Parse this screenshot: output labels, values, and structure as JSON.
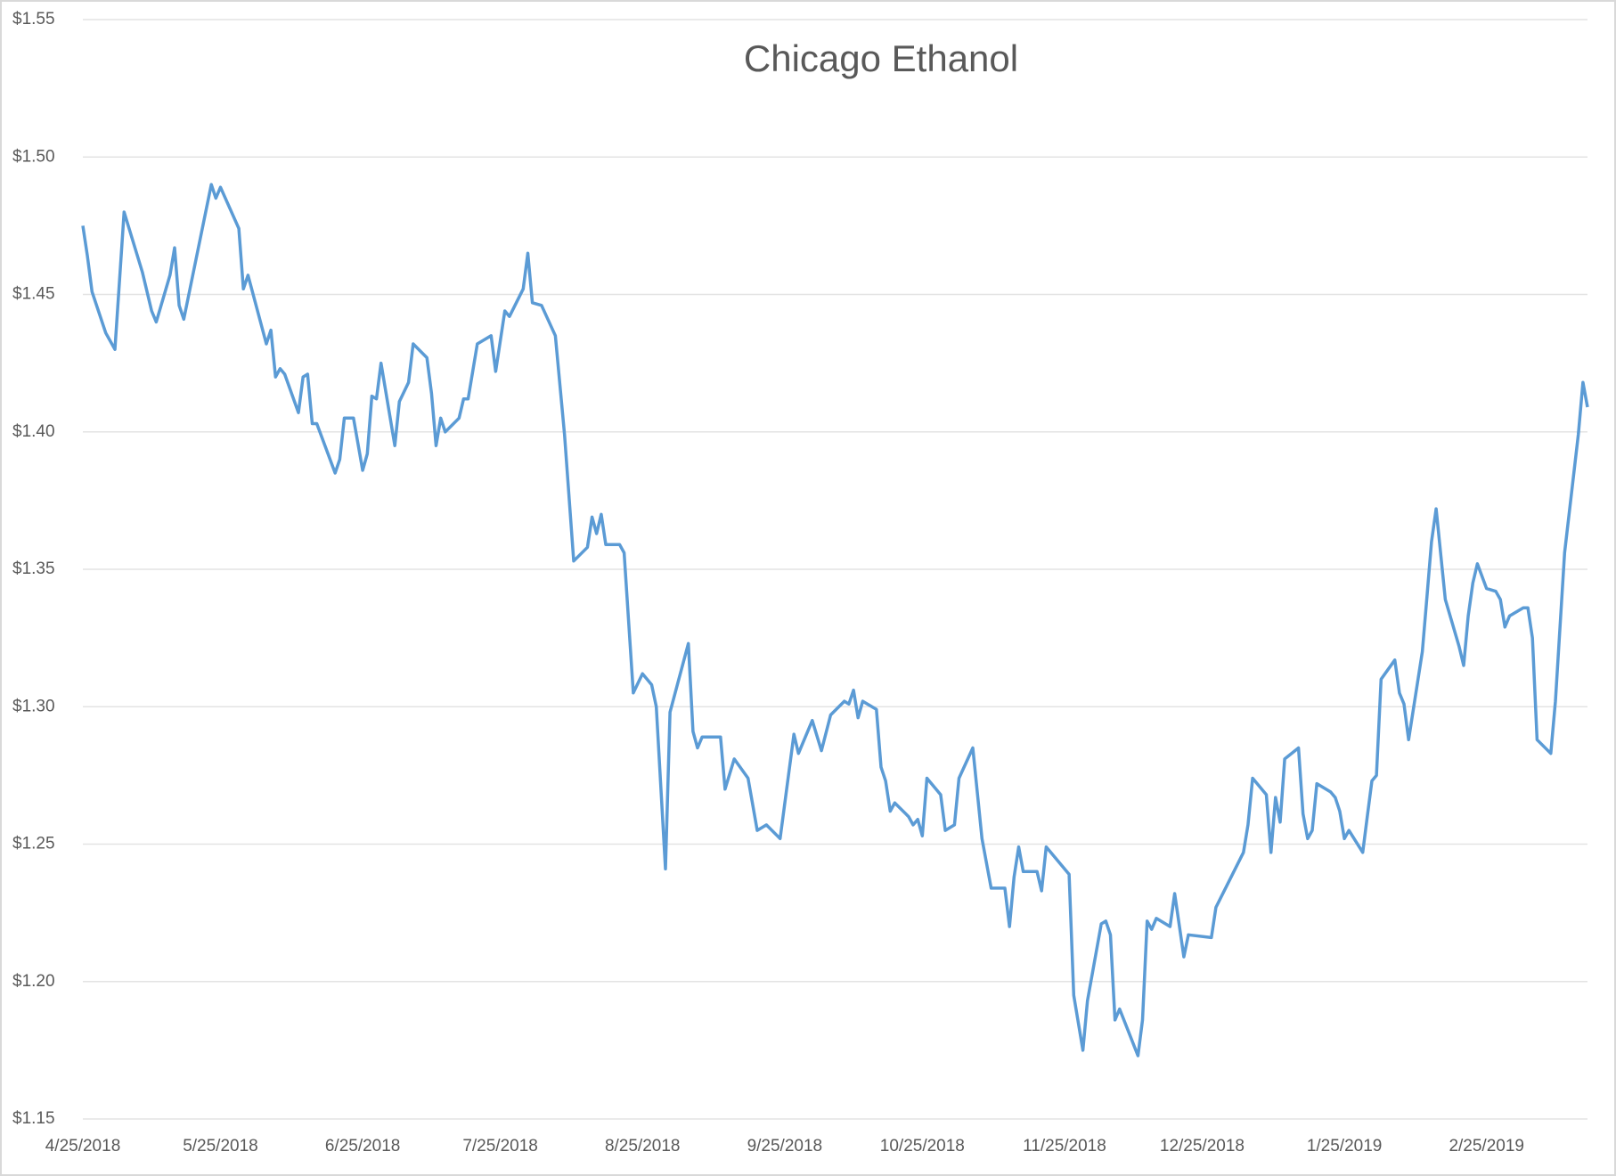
{
  "chart_data": {
    "type": "line",
    "title": "Chicago Ethanol",
    "color": "#5b9bd5",
    "x": [
      "4/25/2018",
      "4/26/2018",
      "4/27/2018",
      "4/30/2018",
      "5/2/2018",
      "5/4/2018",
      "5/8/2018",
      "5/10/2018",
      "5/11/2018",
      "5/14/2018",
      "5/15/2018",
      "5/16/2018",
      "5/17/2018",
      "5/23/2018",
      "5/24/2018",
      "5/25/2018",
      "5/29/2018",
      "5/30/2018",
      "5/31/2018",
      "6/4/2018",
      "6/5/2018",
      "6/6/2018",
      "6/7/2018",
      "6/8/2018",
      "6/11/2018",
      "6/12/2018",
      "6/13/2018",
      "6/14/2018",
      "6/15/2018",
      "6/19/2018",
      "6/20/2018",
      "6/21/2018",
      "6/23/2018",
      "6/25/2018",
      "6/26/2018",
      "6/27/2018",
      "6/28/2018",
      "6/29/2018",
      "7/2/2018",
      "7/3/2018",
      "7/5/2018",
      "7/6/2018",
      "7/9/2018",
      "7/10/2018",
      "7/11/2018",
      "7/12/2018",
      "7/13/2018",
      "7/16/2018",
      "7/17/2018",
      "7/18/2018",
      "7/20/2018",
      "7/23/2018",
      "7/24/2018",
      "7/26/2018",
      "7/27/2018",
      "7/30/2018",
      "7/31/2018",
      "8/1/2018",
      "8/3/2018",
      "8/6/2018",
      "8/8/2018",
      "8/10/2018",
      "8/13/2018",
      "8/14/2018",
      "8/15/2018",
      "8/16/2018",
      "8/17/2018",
      "8/20/2018",
      "8/21/2018",
      "8/23/2018",
      "8/25/2018",
      "8/27/2018",
      "8/28/2018",
      "8/30/2018",
      "8/31/2018",
      "9/4/2018",
      "9/5/2018",
      "9/6/2018",
      "9/7/2018",
      "9/11/2018",
      "9/12/2018",
      "9/14/2018",
      "9/17/2018",
      "9/19/2018",
      "9/21/2018",
      "9/24/2018",
      "9/27/2018",
      "9/28/2018",
      "10/1/2018",
      "10/3/2018",
      "10/5/2018",
      "10/8/2018",
      "10/9/2018",
      "10/10/2018",
      "10/11/2018",
      "10/12/2018",
      "10/15/2018",
      "10/16/2018",
      "10/17/2018",
      "10/18/2018",
      "10/19/2018",
      "10/22/2018",
      "10/23/2018",
      "10/24/2018",
      "10/25/2018",
      "10/26/2018",
      "10/29/2018",
      "10/30/2018",
      "11/1/2018",
      "11/2/2018",
      "11/5/2018",
      "11/7/2018",
      "11/9/2018",
      "11/12/2018",
      "11/13/2018",
      "11/14/2018",
      "11/15/2018",
      "11/16/2018",
      "11/19/2018",
      "11/20/2018",
      "11/21/2018",
      "11/26/2018",
      "11/27/2018",
      "11/29/2018",
      "11/30/2018",
      "12/3/2018",
      "12/4/2018",
      "12/5/2018",
      "12/6/2018",
      "12/7/2018",
      "12/11/2018",
      "12/12/2018",
      "12/13/2018",
      "12/14/2018",
      "12/15/2018",
      "12/18/2018",
      "12/19/2018",
      "12/21/2018",
      "12/22/2018",
      "12/27/2018",
      "12/28/2018",
      "1/3/2019",
      "1/4/2019",
      "1/5/2019",
      "1/8/2019",
      "1/9/2019",
      "1/10/2019",
      "1/11/2019",
      "1/12/2019",
      "1/15/2019",
      "1/16/2019",
      "1/17/2019",
      "1/18/2019",
      "1/19/2019",
      "1/22/2019",
      "1/23/2019",
      "1/24/2019",
      "1/25/2019",
      "1/26/2019",
      "1/29/2019",
      "1/30/2019",
      "1/31/2019",
      "2/1/2019",
      "2/2/2019",
      "2/5/2019",
      "2/6/2019",
      "2/7/2019",
      "2/8/2019",
      "2/11/2019",
      "2/12/2019",
      "2/13/2019",
      "2/14/2019",
      "2/16/2019",
      "2/19/2019",
      "2/20/2019",
      "2/21/2019",
      "2/22/2019",
      "2/23/2019",
      "2/25/2019",
      "2/27/2019",
      "2/28/2019",
      "3/1/2019",
      "3/2/2019",
      "3/5/2019",
      "3/6/2019",
      "3/7/2019",
      "3/8/2019",
      "3/11/2019",
      "3/12/2019",
      "3/14/2019",
      "3/17/2019",
      "3/18/2019",
      "3/19/2019"
    ],
    "values": [
      1.475,
      1.464,
      1.451,
      1.436,
      1.43,
      1.48,
      1.458,
      1.444,
      1.44,
      1.457,
      1.467,
      1.446,
      1.441,
      1.49,
      1.485,
      1.489,
      1.474,
      1.452,
      1.457,
      1.432,
      1.437,
      1.42,
      1.423,
      1.421,
      1.407,
      1.42,
      1.421,
      1.403,
      1.403,
      1.385,
      1.39,
      1.405,
      1.405,
      1.386,
      1.392,
      1.413,
      1.412,
      1.425,
      1.395,
      1.411,
      1.418,
      1.432,
      1.427,
      1.414,
      1.395,
      1.405,
      1.4,
      1.405,
      1.412,
      1.412,
      1.432,
      1.435,
      1.422,
      1.444,
      1.442,
      1.452,
      1.465,
      1.447,
      1.446,
      1.435,
      1.399,
      1.353,
      1.358,
      1.369,
      1.363,
      1.37,
      1.359,
      1.359,
      1.356,
      1.305,
      1.312,
      1.308,
      1.3,
      1.241,
      1.298,
      1.323,
      1.291,
      1.285,
      1.289,
      1.289,
      1.27,
      1.281,
      1.274,
      1.255,
      1.257,
      1.252,
      1.29,
      1.283,
      1.295,
      1.284,
      1.297,
      1.302,
      1.301,
      1.306,
      1.296,
      1.302,
      1.299,
      1.278,
      1.273,
      1.262,
      1.265,
      1.26,
      1.257,
      1.259,
      1.253,
      1.274,
      1.268,
      1.255,
      1.257,
      1.274,
      1.285,
      1.252,
      1.234,
      1.234,
      1.22,
      1.238,
      1.249,
      1.24,
      1.24,
      1.233,
      1.249,
      1.239,
      1.195,
      1.175,
      1.193,
      1.221,
      1.222,
      1.217,
      1.186,
      1.19,
      1.173,
      1.186,
      1.222,
      1.219,
      1.223,
      1.22,
      1.232,
      1.209,
      1.217,
      1.216,
      1.227,
      1.247,
      1.257,
      1.274,
      1.268,
      1.247,
      1.267,
      1.258,
      1.281,
      1.285,
      1.261,
      1.252,
      1.255,
      1.272,
      1.269,
      1.267,
      1.262,
      1.252,
      1.255,
      1.247,
      1.26,
      1.273,
      1.275,
      1.31,
      1.317,
      1.305,
      1.301,
      1.288,
      1.32,
      1.34,
      1.36,
      1.372,
      1.339,
      1.322,
      1.315,
      1.333,
      1.345,
      1.352,
      1.343,
      1.342,
      1.339,
      1.329,
      1.333,
      1.336,
      1.336,
      1.325,
      1.288,
      1.283,
      1.302,
      1.356,
      1.399,
      1.418,
      1.409
    ],
    "xlim": [
      "4/25/2018",
      "3/19/2019"
    ],
    "xticks": [
      "4/25/2018",
      "5/25/2018",
      "6/25/2018",
      "7/25/2018",
      "8/25/2018",
      "9/25/2018",
      "10/25/2018",
      "11/25/2018",
      "12/25/2018",
      "1/25/2019",
      "2/25/2019"
    ],
    "ylim": [
      1.15,
      1.55
    ],
    "yticks": [
      {
        "value": 1.15,
        "label": "$1.15"
      },
      {
        "value": 1.2,
        "label": "$1.20"
      },
      {
        "value": 1.25,
        "label": "$1.25"
      },
      {
        "value": 1.3,
        "label": "$1.30"
      },
      {
        "value": 1.35,
        "label": "$1.35"
      },
      {
        "value": 1.4,
        "label": "$1.40"
      },
      {
        "value": 1.45,
        "label": "$1.45"
      },
      {
        "value": 1.5,
        "label": "$1.50"
      },
      {
        "value": 1.55,
        "label": "$1.55"
      }
    ],
    "grid": true
  }
}
